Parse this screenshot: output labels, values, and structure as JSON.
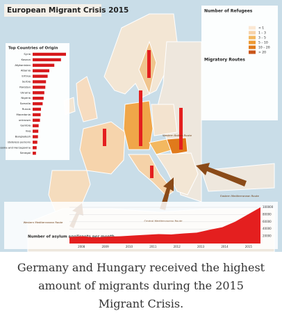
{
  "title": "European Migrant Crisis 2015",
  "origin_panel": {
    "title": "Top Countries of Origin",
    "countries": [
      "Syria",
      "Kosovo",
      "Afghanistan",
      "Albania",
      "Eritrea",
      "Serbia",
      "Pakistan",
      "Ukraine",
      "Nigeria",
      "Somalia",
      "Russia",
      "Macedonia",
      "unknown",
      "Gambia",
      "Iraq",
      "Bangladesh",
      "stateless persons",
      "Bosnia and Herzegovina",
      "Senegal"
    ],
    "values": [
      100,
      85,
      65,
      50,
      45,
      40,
      38,
      35,
      33,
      30,
      25,
      24,
      22,
      18,
      17,
      16,
      14,
      12,
      10
    ]
  },
  "legend": {
    "refugees_title": "Number of Refugees",
    "scale": [
      "< 1",
      "1 – 3",
      "3 – 5",
      "5 – 10",
      "10 – 20",
      "> 20"
    ],
    "routes_title": "Migratory Routes"
  },
  "route_labels": [
    "Western Mediterranean Route",
    "Central Mediterranean Route",
    "Eastern Mediterranean Route",
    "Western Balkan Route"
  ],
  "asylum_chart": {
    "label": "Number of asylum applicants per month",
    "years": [
      "2008",
      "2009",
      "2010",
      "2011",
      "2012",
      "2013",
      "2014",
      "2015"
    ],
    "ylim": [
      0,
      100000
    ],
    "yticks": [
      20000,
      40000,
      60000,
      80000,
      100000
    ],
    "values": [
      18000,
      20000,
      17000,
      19000,
      20000,
      22000,
      24000,
      26000,
      25000,
      28000,
      30000,
      38000,
      45000,
      60000,
      80000,
      100000
    ]
  },
  "caption": [
    "Germany and Hungary received the highest",
    "amount of migrants during the 2015",
    "Migrant Crisis."
  ]
}
